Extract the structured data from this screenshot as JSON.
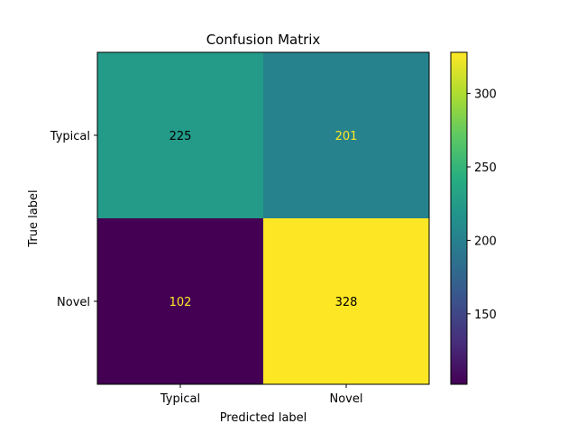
{
  "chart_data": {
    "type": "heatmap",
    "title": "Confusion Matrix",
    "xlabel": "Predicted label",
    "ylabel": "True label",
    "x_categories": [
      "Typical",
      "Novel"
    ],
    "y_categories": [
      "Typical",
      "Novel"
    ],
    "values": [
      [
        225,
        201
      ],
      [
        102,
        328
      ]
    ],
    "colormap": "viridis",
    "colorbar": {
      "min": 102,
      "max": 328,
      "ticks": [
        150,
        200,
        250,
        300
      ]
    },
    "text_colors": {
      "dark": "#000000",
      "light": "#fde725"
    },
    "grid": false,
    "legend": "colorbar-right"
  }
}
